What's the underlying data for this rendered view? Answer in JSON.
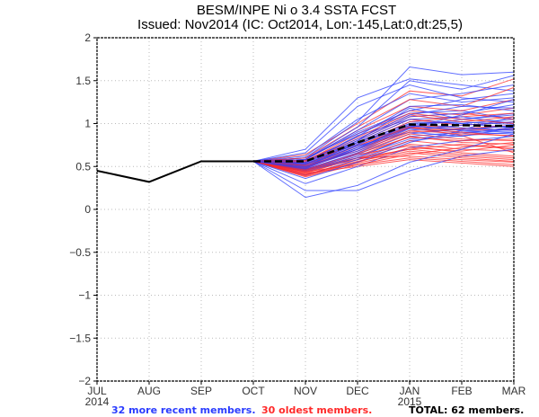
{
  "chart_data": {
    "type": "line",
    "title": "BESM/INPE Ni o 3.4 SSTA FCST",
    "subtitle": "Issued: Nov2014 (IC: Oct2014, Lon:-145,Lat:0,dt:25,5)",
    "xlabel": "",
    "ylabel": "",
    "x": [
      "JUL",
      "AUG",
      "SEP",
      "OCT",
      "NOV",
      "DEC",
      "JAN",
      "FEB",
      "MAR"
    ],
    "x_year_labels": [
      {
        "index": 0,
        "label": "2014"
      },
      {
        "index": 6,
        "label": "2015"
      }
    ],
    "yticks": [
      -2,
      -1.5,
      -1,
      -0.5,
      0,
      0.5,
      1,
      1.5,
      2
    ],
    "ytick_labels": [
      "−2",
      "−1.5",
      "−1",
      "−0.5",
      "0",
      "0.5",
      "1",
      "1.5",
      "2"
    ],
    "ylim": [
      -2,
      2
    ],
    "grid": true,
    "observed": {
      "name": "observed",
      "color": "#000000",
      "x_index": [
        0,
        1,
        2,
        3
      ],
      "values": [
        0.45,
        0.32,
        0.56,
        0.56
      ]
    },
    "ensemble_mean": {
      "name": "ensemble mean",
      "color": "#000000",
      "style": "dashed",
      "x_index": [
        3,
        4,
        5,
        6,
        7,
        8
      ],
      "values": [
        0.56,
        0.56,
        0.78,
        0.99,
        0.98,
        0.97
      ]
    },
    "groups": [
      {
        "name": "32 more recent members",
        "color": "#2a3cff",
        "count": 32
      },
      {
        "name": "30 oldest members",
        "color": "#ff2a2a",
        "count": 30
      }
    ],
    "members_x_index": [
      3,
      4,
      5,
      6,
      7,
      8
    ],
    "members_recent": [
      [
        0.56,
        0.6,
        1.02,
        1.66,
        1.57,
        1.6
      ],
      [
        0.56,
        0.58,
        0.96,
        1.5,
        1.4,
        1.56
      ],
      [
        0.56,
        0.7,
        1.3,
        1.52,
        1.45,
        1.38
      ],
      [
        0.56,
        0.66,
        1.2,
        1.45,
        1.3,
        1.25
      ],
      [
        0.56,
        0.62,
        1.05,
        1.35,
        1.25,
        1.3
      ],
      [
        0.56,
        0.58,
        0.92,
        1.28,
        1.35,
        1.45
      ],
      [
        0.56,
        0.55,
        0.85,
        1.2,
        1.22,
        1.15
      ],
      [
        0.56,
        0.52,
        0.8,
        1.18,
        1.05,
        1.1
      ],
      [
        0.56,
        0.6,
        0.88,
        1.12,
        1.15,
        1.05
      ],
      [
        0.56,
        0.57,
        0.82,
        1.1,
        1.2,
        1.18
      ],
      [
        0.56,
        0.54,
        0.78,
        1.05,
        1.08,
        1.0
      ],
      [
        0.56,
        0.5,
        0.75,
        1.02,
        1.0,
        0.95
      ],
      [
        0.56,
        0.48,
        0.7,
        1.0,
        0.95,
        0.92
      ],
      [
        0.56,
        0.53,
        0.76,
        0.98,
        0.92,
        0.9
      ],
      [
        0.56,
        0.51,
        0.72,
        0.96,
        1.05,
        1.12
      ],
      [
        0.56,
        0.49,
        0.68,
        0.94,
        0.9,
        0.88
      ],
      [
        0.56,
        0.47,
        0.66,
        0.92,
        0.98,
        1.02
      ],
      [
        0.56,
        0.55,
        0.8,
        1.08,
        1.12,
        1.22
      ],
      [
        0.56,
        0.52,
        0.74,
        0.9,
        0.85,
        0.95
      ],
      [
        0.56,
        0.46,
        0.64,
        0.88,
        0.94,
        0.97
      ],
      [
        0.56,
        0.5,
        0.7,
        0.95,
        1.1,
        1.28
      ],
      [
        0.56,
        0.44,
        0.6,
        0.85,
        0.9,
        0.93
      ],
      [
        0.56,
        0.45,
        0.62,
        0.82,
        0.88,
        0.96
      ],
      [
        0.56,
        0.4,
        0.58,
        0.8,
        0.86,
        0.9
      ],
      [
        0.56,
        0.36,
        0.55,
        0.78,
        0.92,
        0.98
      ],
      [
        0.56,
        0.3,
        0.5,
        0.72,
        0.8,
        0.85
      ],
      [
        0.56,
        0.22,
        0.22,
        0.45,
        0.62,
        0.7
      ],
      [
        0.56,
        0.14,
        0.28,
        0.55,
        0.7,
        0.88
      ],
      [
        0.56,
        0.58,
        0.9,
        1.15,
        1.28,
        1.35
      ],
      [
        0.56,
        0.54,
        0.86,
        1.05,
        1.0,
        1.05
      ],
      [
        0.56,
        0.5,
        0.78,
        1.0,
        1.02,
        0.99
      ],
      [
        0.56,
        0.48,
        0.72,
        0.97,
        0.93,
        1.08
      ]
    ],
    "members_oldest": [
      [
        0.56,
        0.64,
        1.0,
        1.38,
        1.32,
        1.52
      ],
      [
        0.56,
        0.6,
        0.96,
        1.28,
        1.2,
        1.42
      ],
      [
        0.56,
        0.58,
        0.92,
        1.2,
        1.15,
        1.28
      ],
      [
        0.56,
        0.56,
        0.88,
        1.15,
        1.1,
        1.18
      ],
      [
        0.56,
        0.55,
        0.82,
        1.1,
        1.02,
        1.08
      ],
      [
        0.56,
        0.52,
        0.78,
        1.05,
        0.98,
        1.02
      ],
      [
        0.56,
        0.5,
        0.74,
        0.98,
        0.95,
        0.92
      ],
      [
        0.56,
        0.48,
        0.7,
        0.92,
        0.88,
        0.86
      ],
      [
        0.56,
        0.46,
        0.66,
        0.88,
        0.82,
        0.8
      ],
      [
        0.56,
        0.44,
        0.62,
        0.85,
        0.78,
        0.76
      ],
      [
        0.56,
        0.42,
        0.6,
        0.8,
        0.74,
        0.72
      ],
      [
        0.56,
        0.4,
        0.58,
        0.76,
        0.7,
        0.68
      ],
      [
        0.56,
        0.45,
        0.64,
        0.74,
        0.66,
        0.62
      ],
      [
        0.56,
        0.43,
        0.6,
        0.7,
        0.64,
        0.6
      ],
      [
        0.56,
        0.41,
        0.56,
        0.68,
        0.62,
        0.58
      ],
      [
        0.56,
        0.39,
        0.54,
        0.66,
        0.6,
        0.56
      ],
      [
        0.56,
        0.47,
        0.6,
        0.62,
        0.58,
        0.55
      ],
      [
        0.56,
        0.44,
        0.52,
        0.6,
        0.56,
        0.52
      ],
      [
        0.56,
        0.42,
        0.5,
        0.58,
        0.54,
        0.5
      ],
      [
        0.56,
        0.5,
        0.7,
        0.95,
        0.9,
        0.85
      ],
      [
        0.56,
        0.53,
        0.76,
        1.02,
        1.08,
        1.12
      ],
      [
        0.56,
        0.49,
        0.72,
        0.96,
        0.92,
        0.94
      ],
      [
        0.56,
        0.51,
        0.68,
        0.9,
        0.94,
        0.98
      ],
      [
        0.56,
        0.47,
        0.65,
        0.84,
        0.8,
        0.82
      ],
      [
        0.56,
        0.55,
        0.8,
        1.08,
        1.12,
        1.05
      ],
      [
        0.56,
        0.57,
        0.84,
        1.12,
        1.05,
        1.0
      ],
      [
        0.56,
        0.4,
        0.55,
        0.72,
        0.68,
        0.75
      ],
      [
        0.56,
        0.38,
        0.52,
        0.64,
        0.72,
        0.78
      ],
      [
        0.56,
        0.46,
        0.58,
        0.7,
        0.76,
        0.7
      ],
      [
        0.56,
        0.52,
        0.74,
        0.96,
        0.86,
        0.66
      ]
    ]
  },
  "footer": {
    "recent": "32 more recent members.",
    "oldest": "30 oldest members.",
    "total": "TOTAL: 62 members."
  }
}
